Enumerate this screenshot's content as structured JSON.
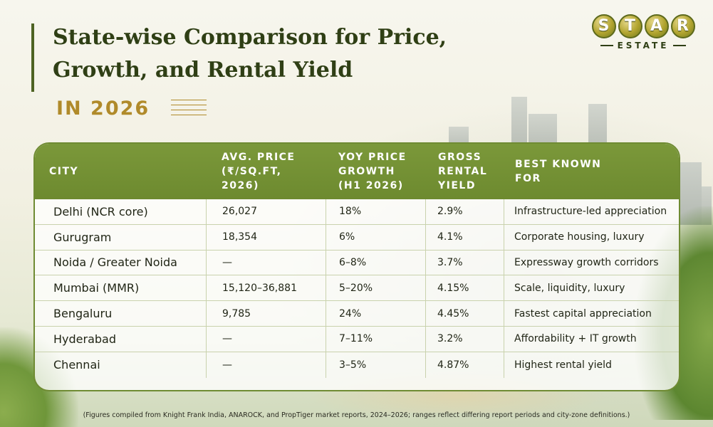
{
  "header": {
    "title": "State-wise Comparison for Price, Growth, and Rental Yield",
    "subtitle": "IN 2026"
  },
  "logo": {
    "letters": [
      "S",
      "T",
      "A",
      "R"
    ],
    "subtext": "ESTATE"
  },
  "table": {
    "columns": [
      "CITY",
      "AVG. PRICE (₹/SQ.FT, 2026)",
      "YOY PRICE GROWTH (H1 2026)",
      "GROSS RENTAL YIELD",
      "BEST KNOWN FOR"
    ],
    "rows": [
      {
        "city": "Delhi (NCR core)",
        "price": "26,027",
        "growth": "18%",
        "yield": "2.9%",
        "known": "Infrastructure-led appreciation"
      },
      {
        "city": "Gurugram",
        "price": "18,354",
        "growth": "6%",
        "yield": "4.1%",
        "known": "Corporate housing, luxury"
      },
      {
        "city": "Noida / Greater Noida",
        "price": "—",
        "growth": "6–8%",
        "yield": "3.7%",
        "known": "Expressway growth corridors"
      },
      {
        "city": "Mumbai (MMR)",
        "price": "15,120–36,881",
        "growth": "5–20%",
        "yield": "4.15%",
        "known": "Scale, liquidity, luxury"
      },
      {
        "city": "Bengaluru",
        "price": "9,785",
        "growth": "24%",
        "yield": "4.45%",
        "known": "Fastest capital appreciation"
      },
      {
        "city": "Hyderabad",
        "price": "—",
        "growth": "7–11%",
        "yield": "3.2%",
        "known": "Affordability + IT growth"
      },
      {
        "city": "Chennai",
        "price": "—",
        "growth": "3–5%",
        "yield": "4.87%",
        "known": "Highest rental yield"
      }
    ]
  },
  "footnote": "(Figures compiled from Knight Frank India, ANAROCK, and PropTiger market reports, 2024–2026; ranges reflect differing report periods and city-zone definitions.)",
  "colors": {
    "header_green": "#6d8a2f",
    "title_dark_green": "#2f3f15",
    "accent_gold": "#b08a2a"
  }
}
